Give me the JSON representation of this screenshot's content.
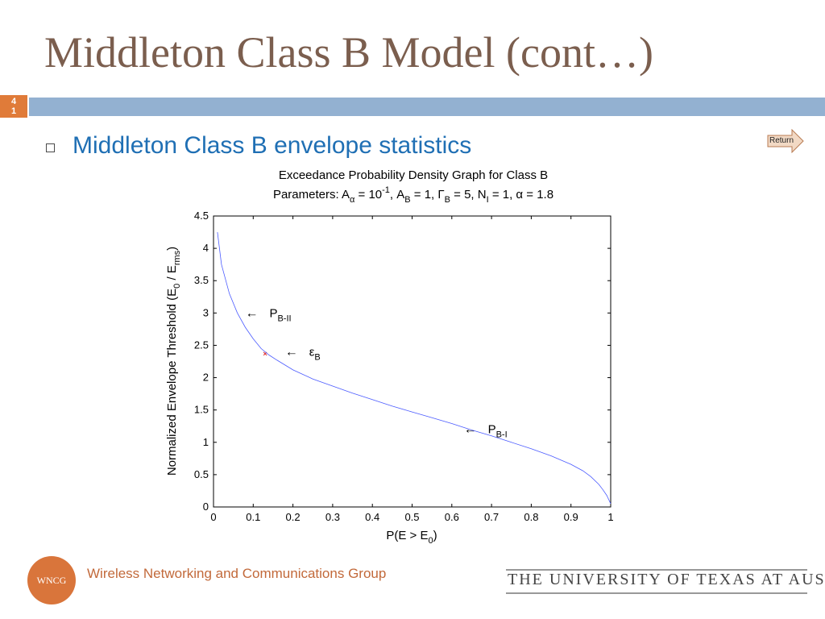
{
  "slide": {
    "title": "Middleton Class B Model (cont…)",
    "number": "4\n1",
    "bullet": "Middleton Class B envelope statistics",
    "return_label": "Return"
  },
  "footer": {
    "group_name": "Wireless Networking and Communications Group",
    "logo_text": "WNCG",
    "university": "THE UNIVERSITY OF TEXAS AT AUSTIN"
  },
  "colors": {
    "title": "#7b5e4e",
    "accent_bar": "#93b1d1",
    "slide_number_bg": "#e07b39",
    "bullet_text": "#1f6fb4",
    "curve": "#4b5bff",
    "marker": "#e03030"
  },
  "chart_data": {
    "type": "line",
    "title": "Exceedance Probability Density Graph for Class B",
    "subtitle": {
      "prefix": "Parameters: A",
      "alpha_sub": "α",
      "eq1": " = 10",
      "exp": "-1",
      "mid1": ", A",
      "b_sub": "B",
      "mid2": " = 1, Γ",
      "gb_sub": "B",
      "mid3": " = 5, N",
      "i_sub": "I",
      "mid4": " = 1, α  = 1.8"
    },
    "xlabel": {
      "main": "P(E > E",
      "sub": "0",
      "tail": ")"
    },
    "ylabel": {
      "main": "Normalized Envelope Threshold (E",
      "sub0": "0",
      "mid": " / E",
      "sub1": "rms",
      "tail": ")"
    },
    "xlim": [
      0,
      1
    ],
    "ylim": [
      0,
      4.5
    ],
    "xticks": [
      "0",
      "0.1",
      "0.2",
      "0.3",
      "0.4",
      "0.5",
      "0.6",
      "0.7",
      "0.8",
      "0.9",
      "1"
    ],
    "yticks": [
      "0",
      "0.5",
      "1",
      "1.5",
      "2",
      "2.5",
      "3",
      "3.5",
      "4",
      "4.5"
    ],
    "grid": false,
    "series": [
      {
        "x": [
          0.01,
          0.02,
          0.04,
          0.06,
          0.08,
          0.1,
          0.12,
          0.14,
          0.16,
          0.2,
          0.25,
          0.3,
          0.35,
          0.4,
          0.45,
          0.5,
          0.55,
          0.6,
          0.65,
          0.7,
          0.75,
          0.8,
          0.85,
          0.9,
          0.93,
          0.95,
          0.97,
          0.98,
          0.99,
          1.0
        ],
        "values": [
          4.25,
          3.75,
          3.3,
          3.0,
          2.78,
          2.6,
          2.45,
          2.35,
          2.27,
          2.12,
          1.98,
          1.87,
          1.76,
          1.66,
          1.56,
          1.47,
          1.38,
          1.29,
          1.19,
          1.1,
          1.0,
          0.9,
          0.79,
          0.66,
          0.56,
          0.47,
          0.35,
          0.27,
          0.18,
          0.05
        ]
      }
    ],
    "marker_point": {
      "x": 0.13,
      "y": 2.37
    },
    "annotations": [
      {
        "arrow": "←",
        "label": "P",
        "sub": "B-II",
        "x": 0.08,
        "y": 3.0
      },
      {
        "arrow": "←",
        "label": "ε",
        "sub": "B",
        "x": 0.18,
        "y": 2.4
      },
      {
        "arrow": "←",
        "label": "P",
        "sub": "B-I",
        "x": 0.63,
        "y": 1.2
      }
    ]
  }
}
